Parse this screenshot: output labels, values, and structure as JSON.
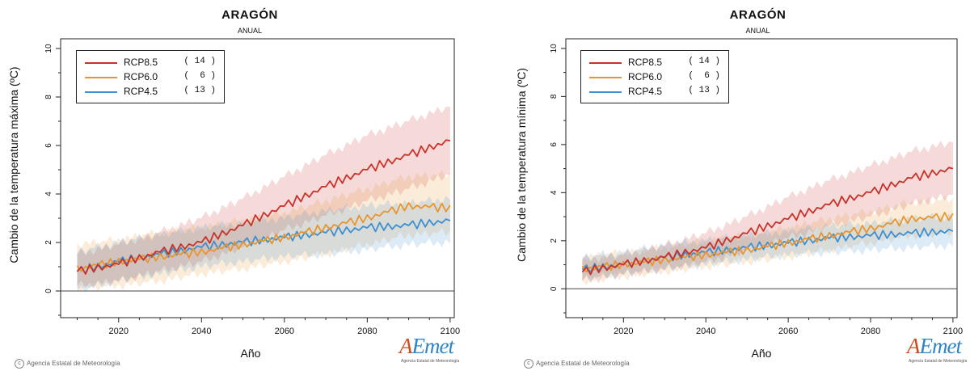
{
  "copyright": "Agencia Estatal de Meteorología",
  "logo": {
    "word_a": "A",
    "word_rest": "Emet",
    "tagline": "Agencia Estatal de Meteorología"
  },
  "colors": {
    "RCP8.5": "#c8322b",
    "RCP6.0": "#e8952e",
    "RCP4.5": "#3d8fcf"
  },
  "chart_data": [
    {
      "type": "line",
      "title": "ARAGÓN",
      "subtitle": "ANUAL",
      "xlabel": "Año",
      "ylabel": "Cambio de la temperatura máxima (ºC)",
      "xlim": [
        2006,
        2101
      ],
      "ylim": [
        -1.1,
        10.4
      ],
      "xticks": [
        2020,
        2040,
        2060,
        2080,
        2100
      ],
      "yticks": [
        0,
        2,
        4,
        6,
        8,
        10
      ],
      "legend_position": "top-left",
      "series": [
        {
          "name": "RCP8.5",
          "count": "( 14 )",
          "color": "#c8322b",
          "x": [
            2010,
            2020,
            2030,
            2040,
            2050,
            2060,
            2070,
            2080,
            2090,
            2100
          ],
          "y": [
            0.8,
            1.1,
            1.6,
            2.0,
            2.7,
            3.5,
            4.3,
            5.0,
            5.6,
            6.2
          ],
          "band_low": [
            0.2,
            0.4,
            0.8,
            1.2,
            1.8,
            2.5,
            3.1,
            3.7,
            4.2,
            4.8
          ],
          "band_high": [
            1.5,
            1.9,
            2.4,
            3.0,
            3.8,
            4.7,
            5.6,
            6.4,
            7.0,
            7.6
          ]
        },
        {
          "name": "RCP6.0",
          "count": "(  6 )",
          "color": "#e8952e",
          "x": [
            2010,
            2020,
            2030,
            2040,
            2050,
            2060,
            2070,
            2080,
            2090,
            2100
          ],
          "y": [
            0.9,
            1.2,
            1.4,
            1.6,
            1.9,
            2.2,
            2.6,
            3.0,
            3.5,
            3.4
          ],
          "band_low": [
            0.1,
            0.2,
            0.4,
            0.7,
            0.9,
            1.2,
            1.5,
            1.9,
            2.3,
            2.4
          ],
          "band_high": [
            1.9,
            2.1,
            2.4,
            2.6,
            2.9,
            3.2,
            3.7,
            4.2,
            4.7,
            4.8
          ]
        },
        {
          "name": "RCP4.5",
          "count": "( 13 )",
          "color": "#3d8fcf",
          "x": [
            2010,
            2020,
            2030,
            2040,
            2050,
            2060,
            2070,
            2080,
            2090,
            2100
          ],
          "y": [
            0.8,
            1.2,
            1.5,
            1.8,
            2.0,
            2.2,
            2.4,
            2.6,
            2.7,
            2.9
          ],
          "band_low": [
            0.0,
            0.4,
            0.7,
            1.0,
            1.2,
            1.4,
            1.5,
            1.7,
            1.9,
            2.0
          ],
          "band_high": [
            1.6,
            2.0,
            2.3,
            2.6,
            2.8,
            3.0,
            3.3,
            3.5,
            3.6,
            3.8
          ]
        }
      ]
    },
    {
      "type": "line",
      "title": "ARAGÓN",
      "subtitle": "ANUAL",
      "xlabel": "Año",
      "ylabel": "Cambio de la temperatura mínima (ºC)",
      "xlim": [
        2006,
        2101
      ],
      "ylim": [
        -1.2,
        10.4
      ],
      "xticks": [
        2020,
        2040,
        2060,
        2080,
        2100
      ],
      "yticks": [
        0,
        2,
        4,
        6,
        8,
        10
      ],
      "legend_position": "top-left",
      "series": [
        {
          "name": "RCP8.5",
          "count": "( 14 )",
          "color": "#c8322b",
          "x": [
            2010,
            2020,
            2030,
            2040,
            2050,
            2060,
            2070,
            2080,
            2090,
            2100
          ],
          "y": [
            0.7,
            1.0,
            1.3,
            1.7,
            2.3,
            2.9,
            3.5,
            4.0,
            4.6,
            5.0
          ],
          "band_low": [
            0.3,
            0.6,
            0.8,
            1.1,
            1.6,
            2.1,
            2.6,
            3.0,
            3.5,
            3.9
          ],
          "band_high": [
            1.2,
            1.4,
            1.8,
            2.3,
            3.0,
            3.8,
            4.5,
            5.1,
            5.7,
            6.1
          ]
        },
        {
          "name": "RCP6.0",
          "count": "(  6 )",
          "color": "#e8952e",
          "x": [
            2010,
            2020,
            2030,
            2040,
            2050,
            2060,
            2070,
            2080,
            2090,
            2100
          ],
          "y": [
            0.8,
            1.0,
            1.2,
            1.4,
            1.6,
            1.9,
            2.2,
            2.5,
            2.9,
            3.0
          ],
          "band_low": [
            0.3,
            0.5,
            0.7,
            0.9,
            1.1,
            1.3,
            1.6,
            1.9,
            2.2,
            2.3
          ],
          "band_high": [
            1.3,
            1.5,
            1.7,
            2.0,
            2.2,
            2.5,
            2.9,
            3.2,
            3.6,
            3.7
          ]
        },
        {
          "name": "RCP4.5",
          "count": "( 13 )",
          "color": "#3d8fcf",
          "x": [
            2010,
            2020,
            2030,
            2040,
            2050,
            2060,
            2070,
            2080,
            2090,
            2100
          ],
          "y": [
            0.8,
            1.0,
            1.3,
            1.5,
            1.7,
            1.9,
            2.1,
            2.2,
            2.3,
            2.4
          ],
          "band_low": [
            0.4,
            0.6,
            0.8,
            1.0,
            1.2,
            1.4,
            1.5,
            1.6,
            1.7,
            1.8
          ],
          "band_high": [
            1.3,
            1.5,
            1.8,
            2.0,
            2.2,
            2.4,
            2.6,
            2.7,
            2.9,
            3.0
          ]
        }
      ]
    }
  ]
}
